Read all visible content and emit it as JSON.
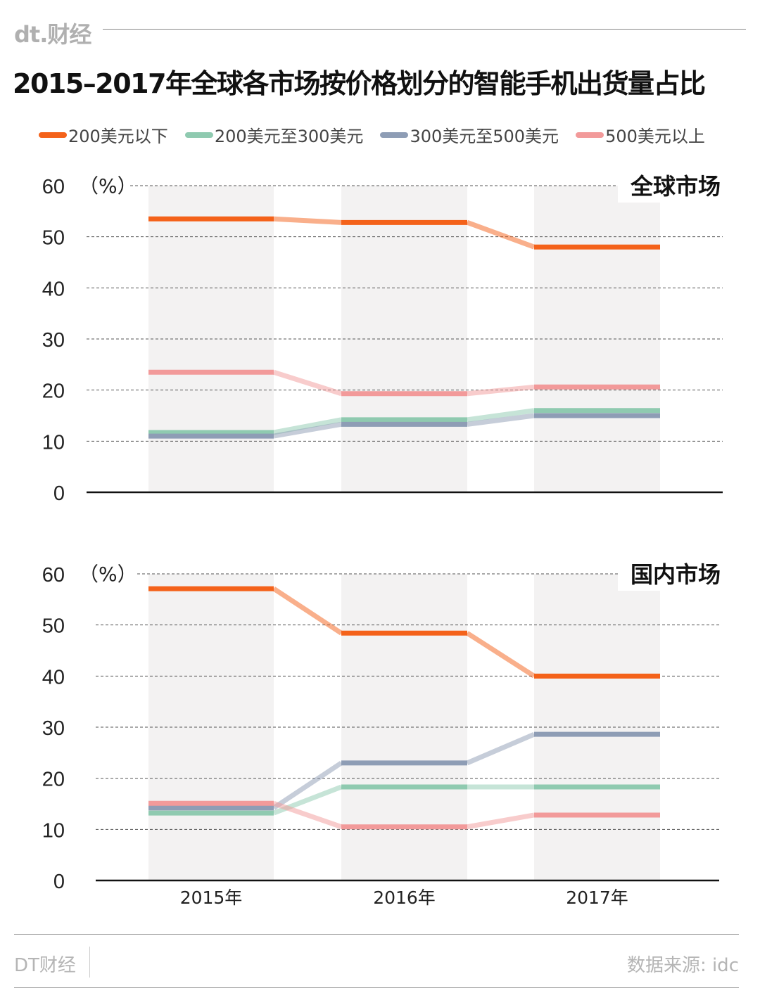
{
  "header": {
    "logo": "dt.财经",
    "title": "2015–2017年全球各市场按价格划分的智能手机出货量占比"
  },
  "footer": {
    "brand": "DT财经",
    "source": "数据来源: idc"
  },
  "chart_data": [
    {
      "type": "line",
      "panel_label": "全球市场",
      "unit_label": "（%）",
      "categories": [
        "2015年",
        "2016年",
        "2017年"
      ],
      "ylim": [
        0,
        60
      ],
      "yticks": [
        0,
        10,
        20,
        30,
        40,
        50,
        60
      ],
      "grid": true,
      "legend": "top",
      "series": [
        {
          "name": "200美元以下",
          "color": "#f4621a",
          "values": [
            53.5,
            52.8,
            48.0
          ]
        },
        {
          "name": "200美元至300美元",
          "color": "#8fcab0",
          "values": [
            11.7,
            14.2,
            16.0
          ]
        },
        {
          "name": "300美元至500美元",
          "color": "#8e9db5",
          "values": [
            11.0,
            13.3,
            15.0
          ]
        },
        {
          "name": "500美元以上",
          "color": "#f29a9a",
          "values": [
            23.5,
            19.3,
            20.6
          ]
        }
      ]
    },
    {
      "type": "line",
      "panel_label": "国内市场",
      "unit_label": "（%）",
      "categories": [
        "2015年",
        "2016年",
        "2017年"
      ],
      "ylim": [
        0,
        60
      ],
      "yticks": [
        0,
        10,
        20,
        30,
        40,
        50,
        60
      ],
      "grid": true,
      "series": [
        {
          "name": "200美元以下",
          "color": "#f4621a",
          "values": [
            57.1,
            48.4,
            40.0
          ]
        },
        {
          "name": "200美元至300美元",
          "color": "#8fcab0",
          "values": [
            13.2,
            18.3,
            18.3
          ]
        },
        {
          "name": "300美元至500美元",
          "color": "#8e9db5",
          "values": [
            14.2,
            23.0,
            28.6
          ]
        },
        {
          "name": "500美元以上",
          "color": "#f29a9a",
          "values": [
            15.1,
            10.5,
            12.8
          ]
        }
      ]
    }
  ]
}
